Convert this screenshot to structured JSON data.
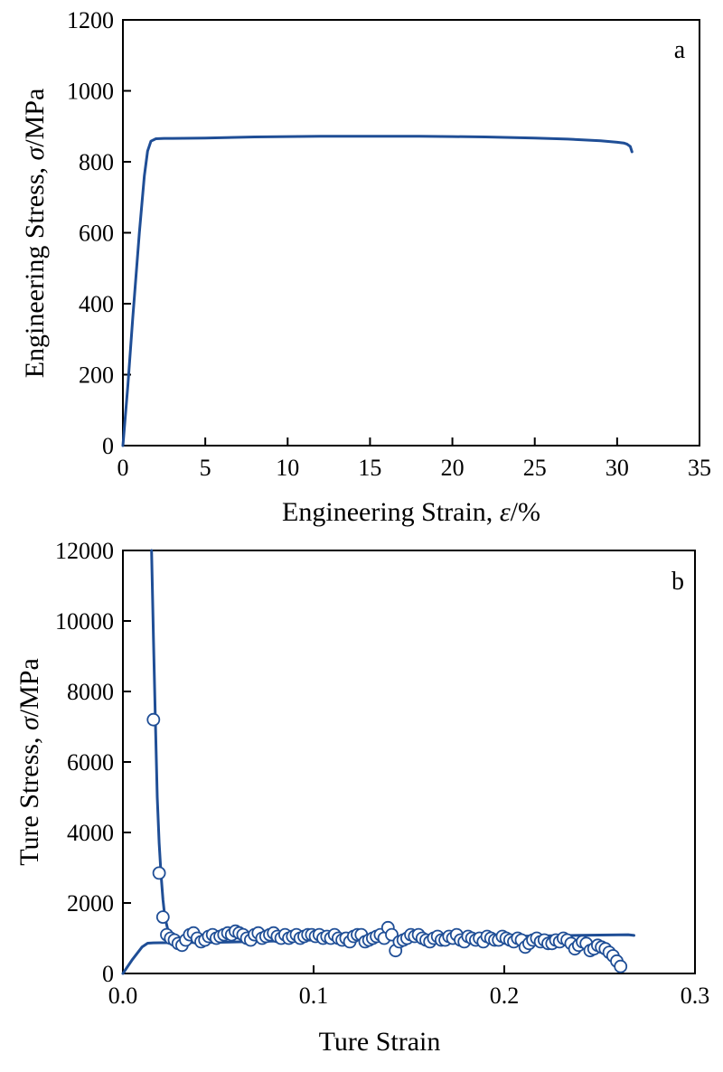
{
  "chart_data": [
    {
      "type": "line",
      "panel_label": "a",
      "xlabel_main": "Engineering Strain, ",
      "xlabel_symbol": "ε",
      "xlabel_unit": "/%",
      "ylabel_main": "Engineering Stress, ",
      "ylabel_symbol": "σ",
      "ylabel_unit": "/MPa",
      "xlim": [
        0,
        35
      ],
      "ylim": [
        0,
        1200
      ],
      "xticks": [
        0,
        5,
        10,
        15,
        20,
        25,
        30,
        35
      ],
      "yticks": [
        0,
        200,
        400,
        600,
        800,
        1000,
        1200
      ],
      "grid": false,
      "line_color": "#1f4e96",
      "series": [
        {
          "x": [
            0,
            0.3,
            0.6,
            1.0,
            1.3,
            1.5,
            1.7,
            2.0,
            2.5,
            3,
            5,
            8,
            10,
            12,
            15,
            18,
            20,
            22,
            25,
            27,
            29,
            30,
            30.4,
            30.6,
            30.8,
            30.9
          ],
          "y": [
            0,
            170,
            360,
            600,
            760,
            830,
            858,
            865,
            866,
            866,
            867,
            870,
            871,
            872,
            872,
            872,
            871,
            870,
            867,
            864,
            859,
            855,
            853,
            850,
            843,
            828
          ]
        }
      ]
    },
    {
      "type": "scatter",
      "panel_label": "b",
      "xlabel": "Ture Strain",
      "ylabel_main": "Ture Stress, ",
      "ylabel_symbol": "σ",
      "ylabel_unit": "/MPa",
      "xlim": [
        0,
        0.3
      ],
      "ylim": [
        0,
        12000
      ],
      "xticks": [
        "0.0",
        "0.1",
        "0.2",
        "0.3"
      ],
      "yticks": [
        0,
        2000,
        4000,
        6000,
        8000,
        10000,
        12000
      ],
      "grid": false,
      "line_color": "#1f4e96",
      "series": [
        {
          "kind": "line",
          "x": [
            0,
            0.005,
            0.01,
            0.013,
            0.016,
            0.02,
            0.03,
            0.05,
            0.08,
            0.1,
            0.15,
            0.2,
            0.25,
            0.265,
            0.268
          ],
          "y": [
            0,
            400,
            750,
            860,
            870,
            872,
            875,
            885,
            920,
            950,
            1000,
            1050,
            1090,
            1100,
            1080
          ]
        },
        {
          "kind": "line",
          "x": [
            0.015,
            0.016,
            0.017,
            0.018,
            0.019,
            0.02,
            0.021,
            0.022,
            0.024,
            0.026
          ],
          "y": [
            12000,
            9500,
            7200,
            5000,
            3700,
            2800,
            2100,
            1600,
            1150,
            1000
          ]
        },
        {
          "kind": "scatter",
          "x": [
            0.016,
            0.019,
            0.021,
            0.023,
            0.025,
            0.027,
            0.029,
            0.031,
            0.033,
            0.035,
            0.037,
            0.039,
            0.041,
            0.043,
            0.045,
            0.047,
            0.049,
            0.051,
            0.053,
            0.055,
            0.057,
            0.059,
            0.061,
            0.063,
            0.065,
            0.067,
            0.069,
            0.071,
            0.073,
            0.075,
            0.077,
            0.079,
            0.081,
            0.083,
            0.085,
            0.087,
            0.089,
            0.091,
            0.093,
            0.095,
            0.097,
            0.099,
            0.101,
            0.103,
            0.105,
            0.107,
            0.109,
            0.111,
            0.113,
            0.115,
            0.117,
            0.119,
            0.121,
            0.123,
            0.125,
            0.127,
            0.129,
            0.131,
            0.133,
            0.135,
            0.137,
            0.139,
            0.141,
            0.143,
            0.145,
            0.147,
            0.149,
            0.151,
            0.153,
            0.155,
            0.157,
            0.159,
            0.161,
            0.163,
            0.165,
            0.167,
            0.169,
            0.171,
            0.173,
            0.175,
            0.177,
            0.179,
            0.181,
            0.183,
            0.185,
            0.187,
            0.189,
            0.191,
            0.193,
            0.195,
            0.197,
            0.199,
            0.201,
            0.203,
            0.205,
            0.207,
            0.209,
            0.211,
            0.213,
            0.215,
            0.217,
            0.219,
            0.221,
            0.223,
            0.225,
            0.227,
            0.229,
            0.231,
            0.233,
            0.235,
            0.237,
            0.239,
            0.241,
            0.243,
            0.245,
            0.247,
            0.249,
            0.251,
            0.253,
            0.255,
            0.257,
            0.259,
            0.261
          ],
          "y": [
            7200,
            2850,
            1600,
            1100,
            1000,
            950,
            850,
            800,
            950,
            1100,
            1150,
            1000,
            900,
            950,
            1050,
            1100,
            1000,
            1050,
            1100,
            1150,
            1100,
            1200,
            1150,
            1100,
            1000,
            950,
            1100,
            1150,
            1000,
            1050,
            1100,
            1150,
            1050,
            1000,
            1100,
            1000,
            1050,
            1100,
            1000,
            1050,
            1100,
            1100,
            1050,
            1100,
            1000,
            1050,
            1000,
            1100,
            1000,
            950,
            1000,
            900,
            1050,
            1100,
            1100,
            900,
            950,
            1000,
            1050,
            1100,
            1000,
            1300,
            1100,
            650,
            900,
            950,
            1000,
            1100,
            1050,
            1100,
            1000,
            950,
            900,
            1000,
            1050,
            950,
            950,
            1050,
            1000,
            1100,
            950,
            900,
            1050,
            1000,
            950,
            1000,
            900,
            1050,
            1000,
            950,
            950,
            1050,
            1000,
            950,
            900,
            1000,
            950,
            750,
            850,
            950,
            1000,
            900,
            950,
            850,
            850,
            950,
            900,
            1000,
            950,
            850,
            700,
            800,
            900,
            850,
            650,
            700,
            800,
            750,
            700,
            600,
            500,
            350,
            200
          ]
        }
      ]
    }
  ]
}
